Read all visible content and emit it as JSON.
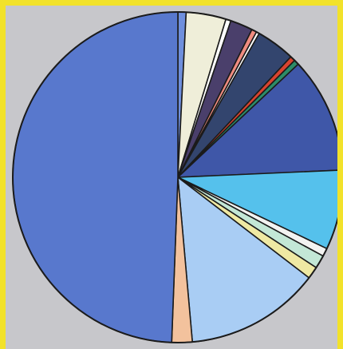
{
  "chart_data": {
    "type": "pie",
    "start_angle_deg": 0,
    "direction": "clockwise",
    "unit": "percent",
    "slices": [
      {
        "value": 0.8,
        "color": "#6f8fdd"
      },
      {
        "value": 3.9,
        "color": "#efeed9"
      },
      {
        "value": 0.5,
        "color": "#ffffff"
      },
      {
        "value": 2.2,
        "color": "#4a3f6b"
      },
      {
        "value": 0.5,
        "color": "#f08c80"
      },
      {
        "value": 0.3,
        "color": "#ffffff"
      },
      {
        "value": 3.8,
        "color": "#33456e"
      },
      {
        "value": 0.5,
        "color": "#d9432f"
      },
      {
        "value": 0.5,
        "color": "#2c8c68"
      },
      {
        "value": 11.3,
        "color": "#3f57a8"
      },
      {
        "value": 7.8,
        "color": "#55c1ec"
      },
      {
        "value": 0.8,
        "color": "#f3f3f1"
      },
      {
        "value": 1.3,
        "color": "#c3e7d6"
      },
      {
        "value": 1.2,
        "color": "#efe9a3"
      },
      {
        "value": 13.2,
        "color": "#a9cdf4"
      },
      {
        "value": 2.0,
        "color": "#f3c29d"
      },
      {
        "value": 49.4,
        "color": "#5878cd"
      }
    ],
    "colors": {
      "border": "#f2e22a",
      "background": "#c7c7cb",
      "outline": "#1b1b1b"
    }
  }
}
